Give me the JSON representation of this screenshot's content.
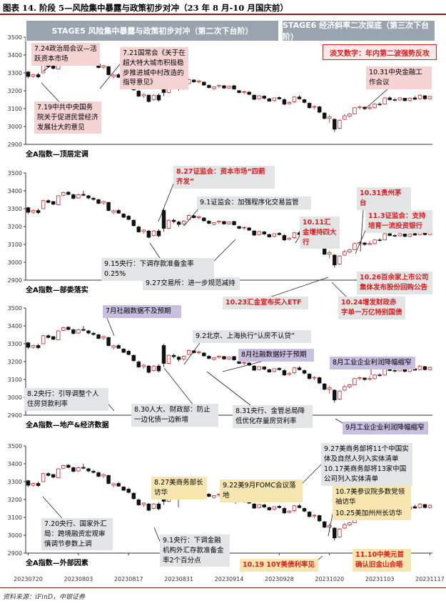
{
  "title": "图表 14. 阶段 5—风险集中暴露与政策初步对冲（23 年 8 月-10 月国庆前）",
  "source": "资料来源：iFinD，中银证券",
  "stages": [
    {
      "label": "STAGE5 风险集中暴露与政策初步对冲（第二次下台阶）"
    },
    {
      "label": "STAGE6 经济斜率二次探底（第三次下台阶）"
    }
  ],
  "stage6_badge": "淡叉数字：年内第二波强势反攻",
  "colors": {
    "up": "#c8262a",
    "down": "#111111",
    "axis": "#333333",
    "grid": "#cfcfcf",
    "accent": "#d81e1e"
  },
  "chart_data": [
    {
      "type": "candlestick",
      "panel_title": "全A指数—顶层定调",
      "ylim": [
        2900,
        3500
      ],
      "yticks": [
        2900,
        3000,
        3100,
        3200,
        3300,
        3400,
        3500
      ],
      "annotations": [
        {
          "text": "7.24政治局会议—活跃资本市场",
          "style": "pink"
        },
        {
          "text": "7.21国常会《关于在超大特大城市积极稳步推进城中村改造的指导意见》",
          "style": "pink"
        },
        {
          "text": "7.19中共中央国务院关于促进民营经济发展壮大的意见",
          "style": "pink"
        },
        {
          "text": "10.31中央金融工作会议",
          "style": "pink"
        }
      ]
    },
    {
      "type": "candlestick",
      "panel_title": "全A指数—部委落实",
      "ylim": [
        2900,
        3500
      ],
      "yticks": [
        2900,
        3000,
        3100,
        3200,
        3300,
        3400,
        3500
      ],
      "annotations": [
        {
          "text": "8.27证监会：资本市场“四箭齐发”",
          "style": "grey-red"
        },
        {
          "text": "9.1证监会：加强程序化交易监管",
          "style": "grey"
        },
        {
          "text": "9.15央行：下调存款准备金率0.25%",
          "style": "grey"
        },
        {
          "text": "9.27交易所：进一步规范减持",
          "style": "grey"
        },
        {
          "text": "10.11汇金增持四大行",
          "style": "grey-red"
        },
        {
          "text": "10.23汇金宣布买入ETF",
          "style": "grey-red"
        },
        {
          "text": "10.24增发财政赤字单一万亿特别国债",
          "style": "grey-red"
        },
        {
          "text": "10.26百余家上市公司集体发布股份回购公告",
          "style": "grey-red"
        },
        {
          "text": "10.31贵州茅台",
          "style": "grey-red"
        },
        {
          "text": "11.3证监会：支持培育一流投资银行",
          "style": "grey-red"
        }
      ]
    },
    {
      "type": "candlestick",
      "panel_title": "全A指数—地产&经济数据",
      "ylim": [
        2900,
        3500
      ],
      "yticks": [
        2900,
        3000,
        3100,
        3200,
        3300,
        3400,
        3500
      ],
      "annotations": [
        {
          "text": "7月社融数据不及预期",
          "style": "purple"
        },
        {
          "text": "9.2北京、上海执行“认房不认贷”",
          "style": "grey"
        },
        {
          "text": "8月社融数据好于预期",
          "style": "purple"
        },
        {
          "text": "8月工业企业利润降幅缩窄",
          "style": "purple"
        },
        {
          "text": "8.2央行：引导调整个人住房贷款利率",
          "style": "grey"
        },
        {
          "text": "8.30人大、财政部：防止一边化债一边新增",
          "style": "grey"
        },
        {
          "text": "8.31央行、金管总局降低优化存量房贷利率",
          "style": "grey"
        },
        {
          "text": "9月工业企业利润降幅缩窄",
          "style": "purple"
        }
      ]
    },
    {
      "type": "candlestick",
      "panel_title": "全A指数—外部因素",
      "ylim": [
        2900,
        3500
      ],
      "yticks": [
        2900,
        3000,
        3100,
        3200,
        3300,
        3400,
        3500
      ],
      "x_ticks": [
        "20230720",
        "20230803",
        "20230817",
        "20230831",
        "20230914",
        "20230928",
        "20231020",
        "20231103",
        "20231117"
      ],
      "annotations": [
        {
          "text": "9.27美商务部将11个中国实体及自然人列入实体清单",
          "style": "grey"
        },
        {
          "text": "10.17美商务部将13家中国公司列入实体清单",
          "style": "grey"
        },
        {
          "text": "8.27美商务部长访华",
          "style": "yellow"
        },
        {
          "text": "9.22美9月FOMC会议落地",
          "style": "yellow"
        },
        {
          "text": "10.7美参议院多数党领袖访华",
          "style": "yellow"
        },
        {
          "text": "10.25美加州州长访华",
          "style": "yellow"
        },
        {
          "text": "7.20央行、国家外汇局：跨境融资宏观审慎调节参数上调",
          "style": "grey"
        },
        {
          "text": "9.1央行：下调金融机构外汇存款准备金率2个百分点",
          "style": "grey"
        },
        {
          "text": "10.19 10Y美债利率见",
          "style": "yellow-red"
        },
        {
          "text": "11.10中美元首确认旧金山会晤",
          "style": "yellow-red"
        }
      ]
    }
  ],
  "series": {
    "dates": [
      "20230720",
      "20230721",
      "20230724",
      "20230725",
      "20230726",
      "20230727",
      "20230728",
      "20230731",
      "20230801",
      "20230802",
      "20230803",
      "20230804",
      "20230807",
      "20230808",
      "20230809",
      "20230810",
      "20230811",
      "20230814",
      "20230815",
      "20230816",
      "20230817",
      "20230818",
      "20230821",
      "20230822",
      "20230823",
      "20230824",
      "20230825",
      "20230828",
      "20230829",
      "20230830",
      "20230831",
      "20230901",
      "20230904",
      "20230905",
      "20230906",
      "20230907",
      "20230908",
      "20230911",
      "20230912",
      "20230913",
      "20230914",
      "20230915",
      "20230918",
      "20230919",
      "20230920",
      "20230921",
      "20230922",
      "20230925",
      "20230926",
      "20230927",
      "20230928",
      "20231009",
      "20231010",
      "20231011",
      "20231012",
      "20231013",
      "20231016",
      "20231017",
      "20231018",
      "20231019",
      "20231020",
      "20231023",
      "20231024",
      "20231025",
      "20231026",
      "20231027",
      "20231030",
      "20231031",
      "20231101",
      "20231102",
      "20231103",
      "20231106",
      "20231107",
      "20231108",
      "20231109",
      "20231110",
      "20231113",
      "20231114",
      "20231115",
      "20231116",
      "20231117"
    ],
    "ohlc": [
      [
        3305,
        3310,
        3270,
        3280
      ],
      [
        3280,
        3295,
        3272,
        3290
      ],
      [
        3290,
        3300,
        3270,
        3278
      ],
      [
        3300,
        3350,
        3298,
        3345
      ],
      [
        3345,
        3352,
        3330,
        3335
      ],
      [
        3340,
        3342,
        3320,
        3325
      ],
      [
        3322,
        3375,
        3320,
        3372
      ],
      [
        3375,
        3395,
        3370,
        3390
      ],
      [
        3392,
        3398,
        3375,
        3380
      ],
      [
        3378,
        3384,
        3352,
        3358
      ],
      [
        3360,
        3385,
        3355,
        3378
      ],
      [
        3380,
        3400,
        3370,
        3375
      ],
      [
        3372,
        3378,
        3352,
        3360
      ],
      [
        3358,
        3366,
        3345,
        3352
      ],
      [
        3350,
        3356,
        3325,
        3330
      ],
      [
        3332,
        3345,
        3320,
        3340
      ],
      [
        3335,
        3338,
        3285,
        3290
      ],
      [
        3280,
        3295,
        3268,
        3288
      ],
      [
        3290,
        3298,
        3272,
        3275
      ],
      [
        3270,
        3275,
        3248,
        3252
      ],
      [
        3258,
        3265,
        3235,
        3240
      ],
      [
        3235,
        3240,
        3200,
        3205
      ],
      [
        3198,
        3205,
        3165,
        3170
      ],
      [
        3172,
        3185,
        3160,
        3180
      ],
      [
        3175,
        3180,
        3135,
        3140
      ],
      [
        3150,
        3180,
        3145,
        3175
      ],
      [
        3175,
        3185,
        3140,
        3148
      ],
      [
        3290,
        3300,
        3170,
        3190
      ],
      [
        3190,
        3240,
        3185,
        3235
      ],
      [
        3235,
        3245,
        3218,
        3228
      ],
      [
        3225,
        3232,
        3200,
        3212
      ],
      [
        3215,
        3235,
        3205,
        3230
      ],
      [
        3240,
        3268,
        3238,
        3262
      ],
      [
        3260,
        3265,
        3245,
        3250
      ],
      [
        3250,
        3262,
        3240,
        3255
      ],
      [
        3248,
        3252,
        3228,
        3232
      ],
      [
        3230,
        3236,
        3212,
        3218
      ],
      [
        3212,
        3225,
        3205,
        3222
      ],
      [
        3225,
        3235,
        3215,
        3230
      ],
      [
        3228,
        3232,
        3210,
        3215
      ],
      [
        3215,
        3228,
        3210,
        3225
      ],
      [
        3228,
        3232,
        3205,
        3210
      ],
      [
        3200,
        3205,
        3185,
        3190
      ],
      [
        3192,
        3200,
        3180,
        3195
      ],
      [
        3192,
        3198,
        3175,
        3180
      ],
      [
        3175,
        3180,
        3148,
        3152
      ],
      [
        3155,
        3175,
        3150,
        3172
      ],
      [
        3170,
        3175,
        3152,
        3158
      ],
      [
        3155,
        3160,
        3138,
        3142
      ],
      [
        3145,
        3162,
        3140,
        3160
      ],
      [
        3162,
        3168,
        3150,
        3155
      ],
      [
        3150,
        3158,
        3120,
        3125
      ],
      [
        3128,
        3140,
        3122,
        3135
      ],
      [
        3138,
        3170,
        3130,
        3165
      ],
      [
        3165,
        3175,
        3150,
        3155
      ],
      [
        3150,
        3155,
        3130,
        3135
      ],
      [
        3130,
        3135,
        3100,
        3105
      ],
      [
        3108,
        3118,
        3095,
        3112
      ],
      [
        3110,
        3115,
        3075,
        3080
      ],
      [
        3075,
        3080,
        3040,
        3045
      ],
      [
        3045,
        3065,
        3020,
        3055
      ],
      [
        3040,
        3045,
        2970,
        2985
      ],
      [
        2990,
        3040,
        2985,
        3035
      ],
      [
        3040,
        3070,
        3035,
        3060
      ],
      [
        3058,
        3075,
        3050,
        3070
      ],
      [
        3070,
        3110,
        3068,
        3105
      ],
      [
        3105,
        3118,
        3095,
        3110
      ],
      [
        3108,
        3112,
        3092,
        3100
      ],
      [
        3100,
        3120,
        3095,
        3105
      ],
      [
        3105,
        3130,
        3100,
        3125
      ],
      [
        3125,
        3135,
        3115,
        3122
      ],
      [
        3125,
        3165,
        3122,
        3160
      ],
      [
        3160,
        3168,
        3145,
        3150
      ],
      [
        3150,
        3158,
        3140,
        3148
      ],
      [
        3148,
        3165,
        3145,
        3160
      ],
      [
        3158,
        3160,
        3140,
        3145
      ],
      [
        3145,
        3162,
        3140,
        3158
      ],
      [
        3160,
        3170,
        3150,
        3152
      ],
      [
        3155,
        3180,
        3150,
        3175
      ],
      [
        3172,
        3175,
        3150,
        3155
      ],
      [
        3155,
        3172,
        3150,
        3168
      ]
    ]
  }
}
